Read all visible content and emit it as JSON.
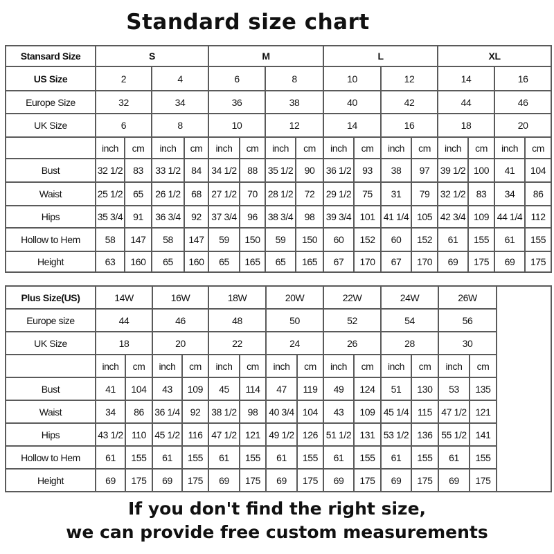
{
  "title": "Standard size chart",
  "standard": {
    "header_label": "Stansard Size",
    "groups": [
      "S",
      "M",
      "L",
      "XL"
    ],
    "us_label": "US Size",
    "us": [
      "2",
      "4",
      "6",
      "8",
      "10",
      "12",
      "14",
      "16"
    ],
    "europe_label": "Europe Size",
    "europe": [
      "32",
      "34",
      "36",
      "38",
      "40",
      "42",
      "44",
      "46"
    ],
    "uk_label": "UK Size",
    "uk": [
      "6",
      "8",
      "10",
      "12",
      "14",
      "16",
      "18",
      "20"
    ],
    "units": [
      "inch",
      "cm"
    ],
    "measurements": [
      {
        "label": "Bust",
        "values": [
          "32 1/2",
          "83",
          "33 1/2",
          "84",
          "34 1/2",
          "88",
          "35 1/2",
          "90",
          "36 1/2",
          "93",
          "38",
          "97",
          "39 1/2",
          "100",
          "41",
          "104"
        ]
      },
      {
        "label": "Waist",
        "values": [
          "25 1/2",
          "65",
          "26 1/2",
          "68",
          "27 1/2",
          "70",
          "28 1/2",
          "72",
          "29 1/2",
          "75",
          "31",
          "79",
          "32 1/2",
          "83",
          "34",
          "86"
        ]
      },
      {
        "label": "Hips",
        "values": [
          "35 3/4",
          "91",
          "36 3/4",
          "92",
          "37 3/4",
          "96",
          "38 3/4",
          "98",
          "39 3/4",
          "101",
          "41 1/4",
          "105",
          "42 3/4",
          "109",
          "44 1/4",
          "112"
        ]
      },
      {
        "label": "Hollow to Hem",
        "values": [
          "58",
          "147",
          "58",
          "147",
          "59",
          "150",
          "59",
          "150",
          "60",
          "152",
          "60",
          "152",
          "61",
          "155",
          "61",
          "155"
        ]
      },
      {
        "label": "Height",
        "values": [
          "63",
          "160",
          "65",
          "160",
          "65",
          "165",
          "65",
          "165",
          "67",
          "170",
          "67",
          "170",
          "69",
          "175",
          "69",
          "175"
        ]
      }
    ]
  },
  "plus": {
    "header_label": "Plus Size(US)",
    "us": [
      "14W",
      "16W",
      "18W",
      "20W",
      "22W",
      "24W",
      "26W"
    ],
    "europe_label": "Europe size",
    "europe": [
      "44",
      "46",
      "48",
      "50",
      "52",
      "54",
      "56"
    ],
    "uk_label": "UK Size",
    "uk": [
      "18",
      "20",
      "22",
      "24",
      "26",
      "28",
      "30"
    ],
    "units": [
      "inch",
      "cm"
    ],
    "measurements": [
      {
        "label": "Bust",
        "values": [
          "41",
          "104",
          "43",
          "109",
          "45",
          "114",
          "47",
          "119",
          "49",
          "124",
          "51",
          "130",
          "53",
          "135"
        ]
      },
      {
        "label": "Waist",
        "values": [
          "34",
          "86",
          "36 1/4",
          "92",
          "38 1/2",
          "98",
          "40 3/4",
          "104",
          "43",
          "109",
          "45 1/4",
          "115",
          "47 1/2",
          "121"
        ]
      },
      {
        "label": "Hips",
        "values": [
          "43 1/2",
          "110",
          "45 1/2",
          "116",
          "47 1/2",
          "121",
          "49 1/2",
          "126",
          "51 1/2",
          "131",
          "53 1/2",
          "136",
          "55 1/2",
          "141"
        ]
      },
      {
        "label": "Hollow to Hem",
        "values": [
          "61",
          "155",
          "61",
          "155",
          "61",
          "155",
          "61",
          "155",
          "61",
          "155",
          "61",
          "155",
          "61",
          "155"
        ]
      },
      {
        "label": "Height",
        "values": [
          "69",
          "175",
          "69",
          "175",
          "69",
          "175",
          "69",
          "175",
          "69",
          "175",
          "69",
          "175",
          "69",
          "175"
        ]
      }
    ]
  },
  "footer": {
    "line1": "If you don't find the right size,",
    "line2": "we can provide free custom measurements"
  }
}
